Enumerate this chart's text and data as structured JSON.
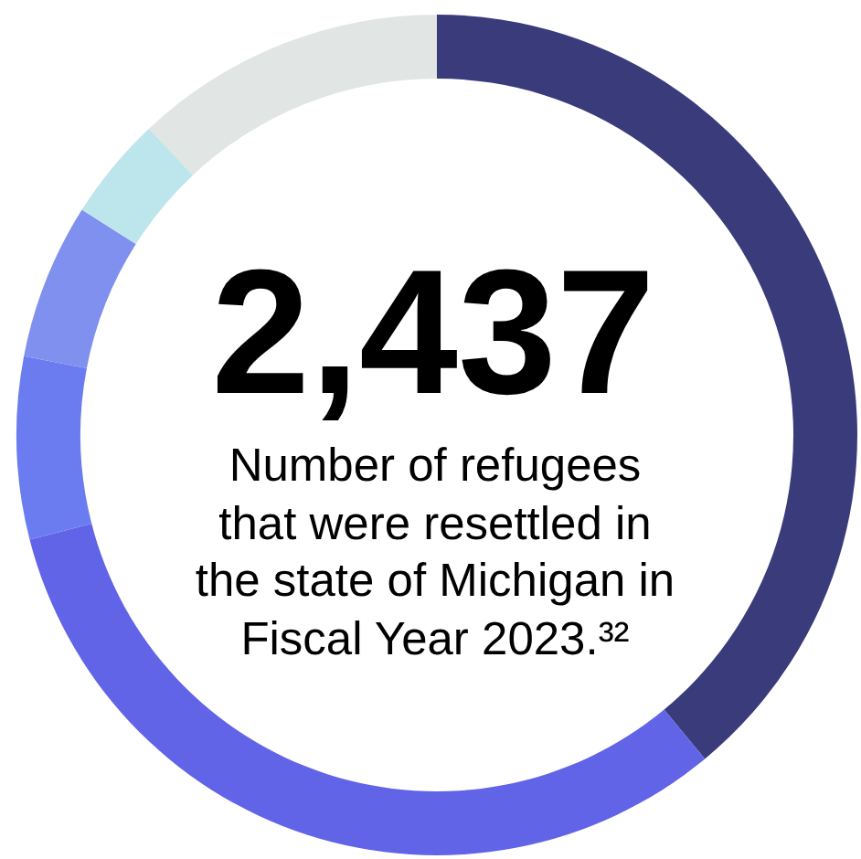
{
  "chart_data": {
    "type": "donut",
    "title": "2,437",
    "subtitle": "Number of refugees that were resettled in the state of Michigan in Fiscal Year 2023.³²",
    "categories": [
      null,
      null,
      null,
      null,
      null,
      null
    ],
    "values": [
      39,
      32,
      7,
      6,
      4,
      12
    ],
    "colors": [
      "#3a3b7b",
      "#6264e8",
      "#6a7cf0",
      "#8090ee",
      "#bce6ec",
      "#e1e5e4"
    ]
  }
}
